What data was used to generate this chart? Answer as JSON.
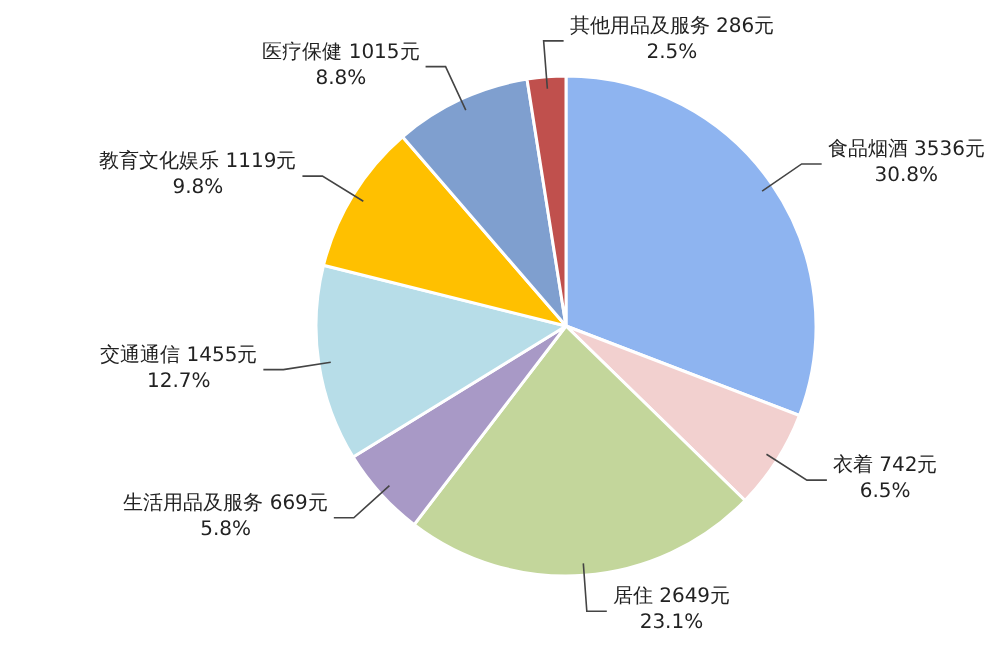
{
  "chart_data": {
    "type": "pie",
    "categories": [
      "食品烟酒",
      "衣着",
      "居住",
      "生活用品及服务",
      "交通通信",
      "教育文化娱乐",
      "医疗保健",
      "其他用品及服务"
    ],
    "values": [
      3536,
      742,
      2649,
      669,
      1455,
      1119,
      1015,
      286
    ],
    "value_labels": [
      "3536元\n30.8%",
      "742元\n6.5%",
      "2649元\n23.1%",
      "669元\n5.8%",
      "1455元\n12.7%",
      "1119元\n9.8%",
      "1015元\n8.8%",
      "286元\n2.5%"
    ],
    "colors": [
      "#8eb4f0",
      "#f2d0cf",
      "#c3d69b",
      "#a899c6",
      "#b7dde8",
      "#ffc000",
      "#7f9fcf",
      "#c0504d"
    ],
    "legend": false
  }
}
